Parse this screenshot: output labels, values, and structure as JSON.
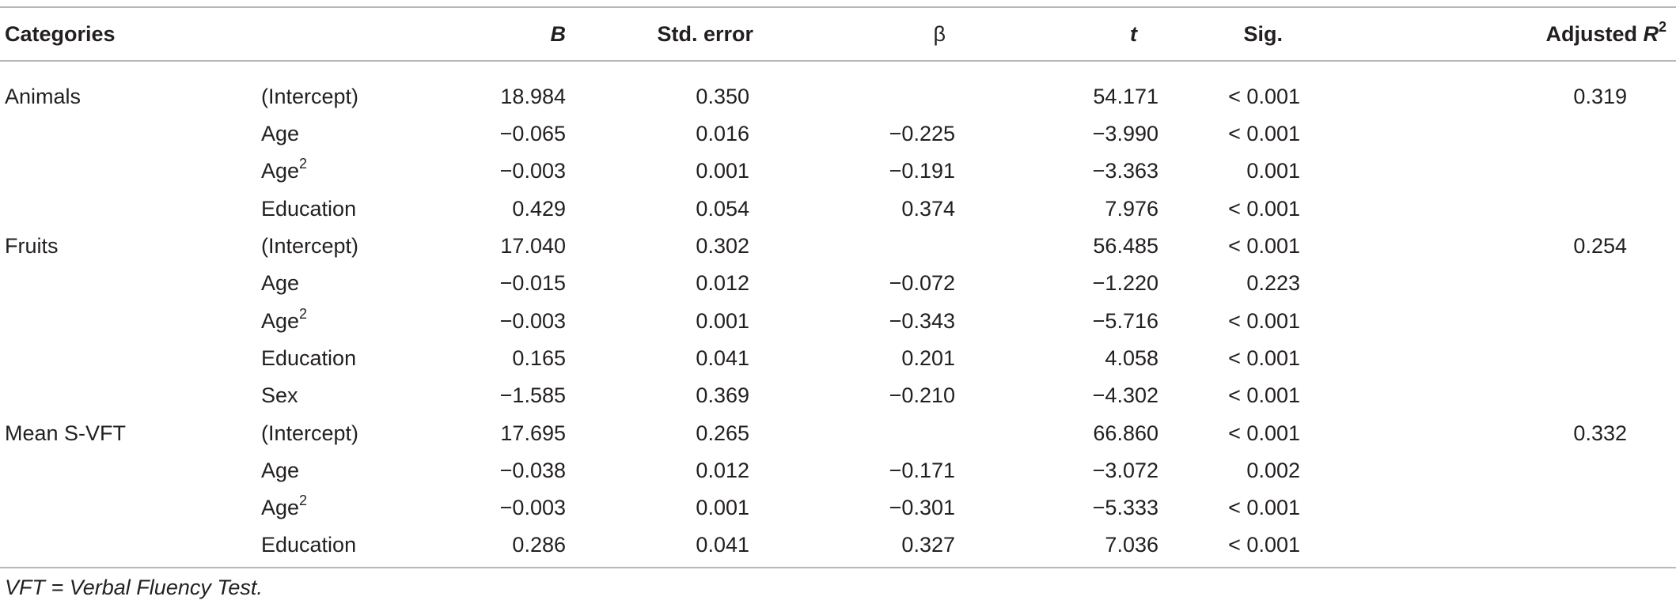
{
  "header": {
    "categories": "Categories",
    "b": "B",
    "std_error": "Std. error",
    "beta": "β",
    "t": "t",
    "sig": "Sig.",
    "adjusted": "Adjusted ",
    "r": "R",
    "r_sup": "2"
  },
  "rows": [
    {
      "category": "Animals",
      "variable": "(Intercept)",
      "sup": "",
      "b": "18.984",
      "se": "0.350",
      "beta": "",
      "t": "54.171",
      "sig": "< 0.001",
      "adj_r2": "0.319"
    },
    {
      "category": "",
      "variable": "Age",
      "sup": "",
      "b": "−0.065",
      "se": "0.016",
      "beta": "−0.225",
      "t": "−3.990",
      "sig": "< 0.001",
      "adj_r2": ""
    },
    {
      "category": "",
      "variable": "Age",
      "sup": "2",
      "b": "−0.003",
      "se": "0.001",
      "beta": "−0.191",
      "t": "−3.363",
      "sig": "0.001",
      "adj_r2": ""
    },
    {
      "category": "",
      "variable": "Education",
      "sup": "",
      "b": "0.429",
      "se": "0.054",
      "beta": "0.374",
      "t": "7.976",
      "sig": "< 0.001",
      "adj_r2": ""
    },
    {
      "category": "Fruits",
      "variable": "(Intercept)",
      "sup": "",
      "b": "17.040",
      "se": "0.302",
      "beta": "",
      "t": "56.485",
      "sig": "< 0.001",
      "adj_r2": "0.254"
    },
    {
      "category": "",
      "variable": "Age",
      "sup": "",
      "b": "−0.015",
      "se": "0.012",
      "beta": "−0.072",
      "t": "−1.220",
      "sig": "0.223",
      "adj_r2": ""
    },
    {
      "category": "",
      "variable": "Age",
      "sup": "2",
      "b": "−0.003",
      "se": "0.001",
      "beta": "−0.343",
      "t": "−5.716",
      "sig": "< 0.001",
      "adj_r2": ""
    },
    {
      "category": "",
      "variable": "Education",
      "sup": "",
      "b": "0.165",
      "se": "0.041",
      "beta": "0.201",
      "t": "4.058",
      "sig": "< 0.001",
      "adj_r2": ""
    },
    {
      "category": "",
      "variable": "Sex",
      "sup": "",
      "b": "−1.585",
      "se": "0.369",
      "beta": "−0.210",
      "t": "−4.302",
      "sig": "< 0.001",
      "adj_r2": ""
    },
    {
      "category": "Mean S-VFT",
      "variable": "(Intercept)",
      "sup": "",
      "b": "17.695",
      "se": "0.265",
      "beta": "",
      "t": "66.860",
      "sig": "< 0.001",
      "adj_r2": "0.332"
    },
    {
      "category": "",
      "variable": "Age",
      "sup": "",
      "b": "−0.038",
      "se": "0.012",
      "beta": "−0.171",
      "t": "−3.072",
      "sig": "0.002",
      "adj_r2": ""
    },
    {
      "category": "",
      "variable": "Age",
      "sup": "2",
      "b": "−0.003",
      "se": "0.001",
      "beta": "−0.301",
      "t": "−5.333",
      "sig": "< 0.001",
      "adj_r2": ""
    },
    {
      "category": "",
      "variable": "Education",
      "sup": "",
      "b": "0.286",
      "se": "0.041",
      "beta": "0.327",
      "t": "7.036",
      "sig": "< 0.001",
      "adj_r2": ""
    }
  ],
  "footnote": "VFT = Verbal Fluency Test."
}
